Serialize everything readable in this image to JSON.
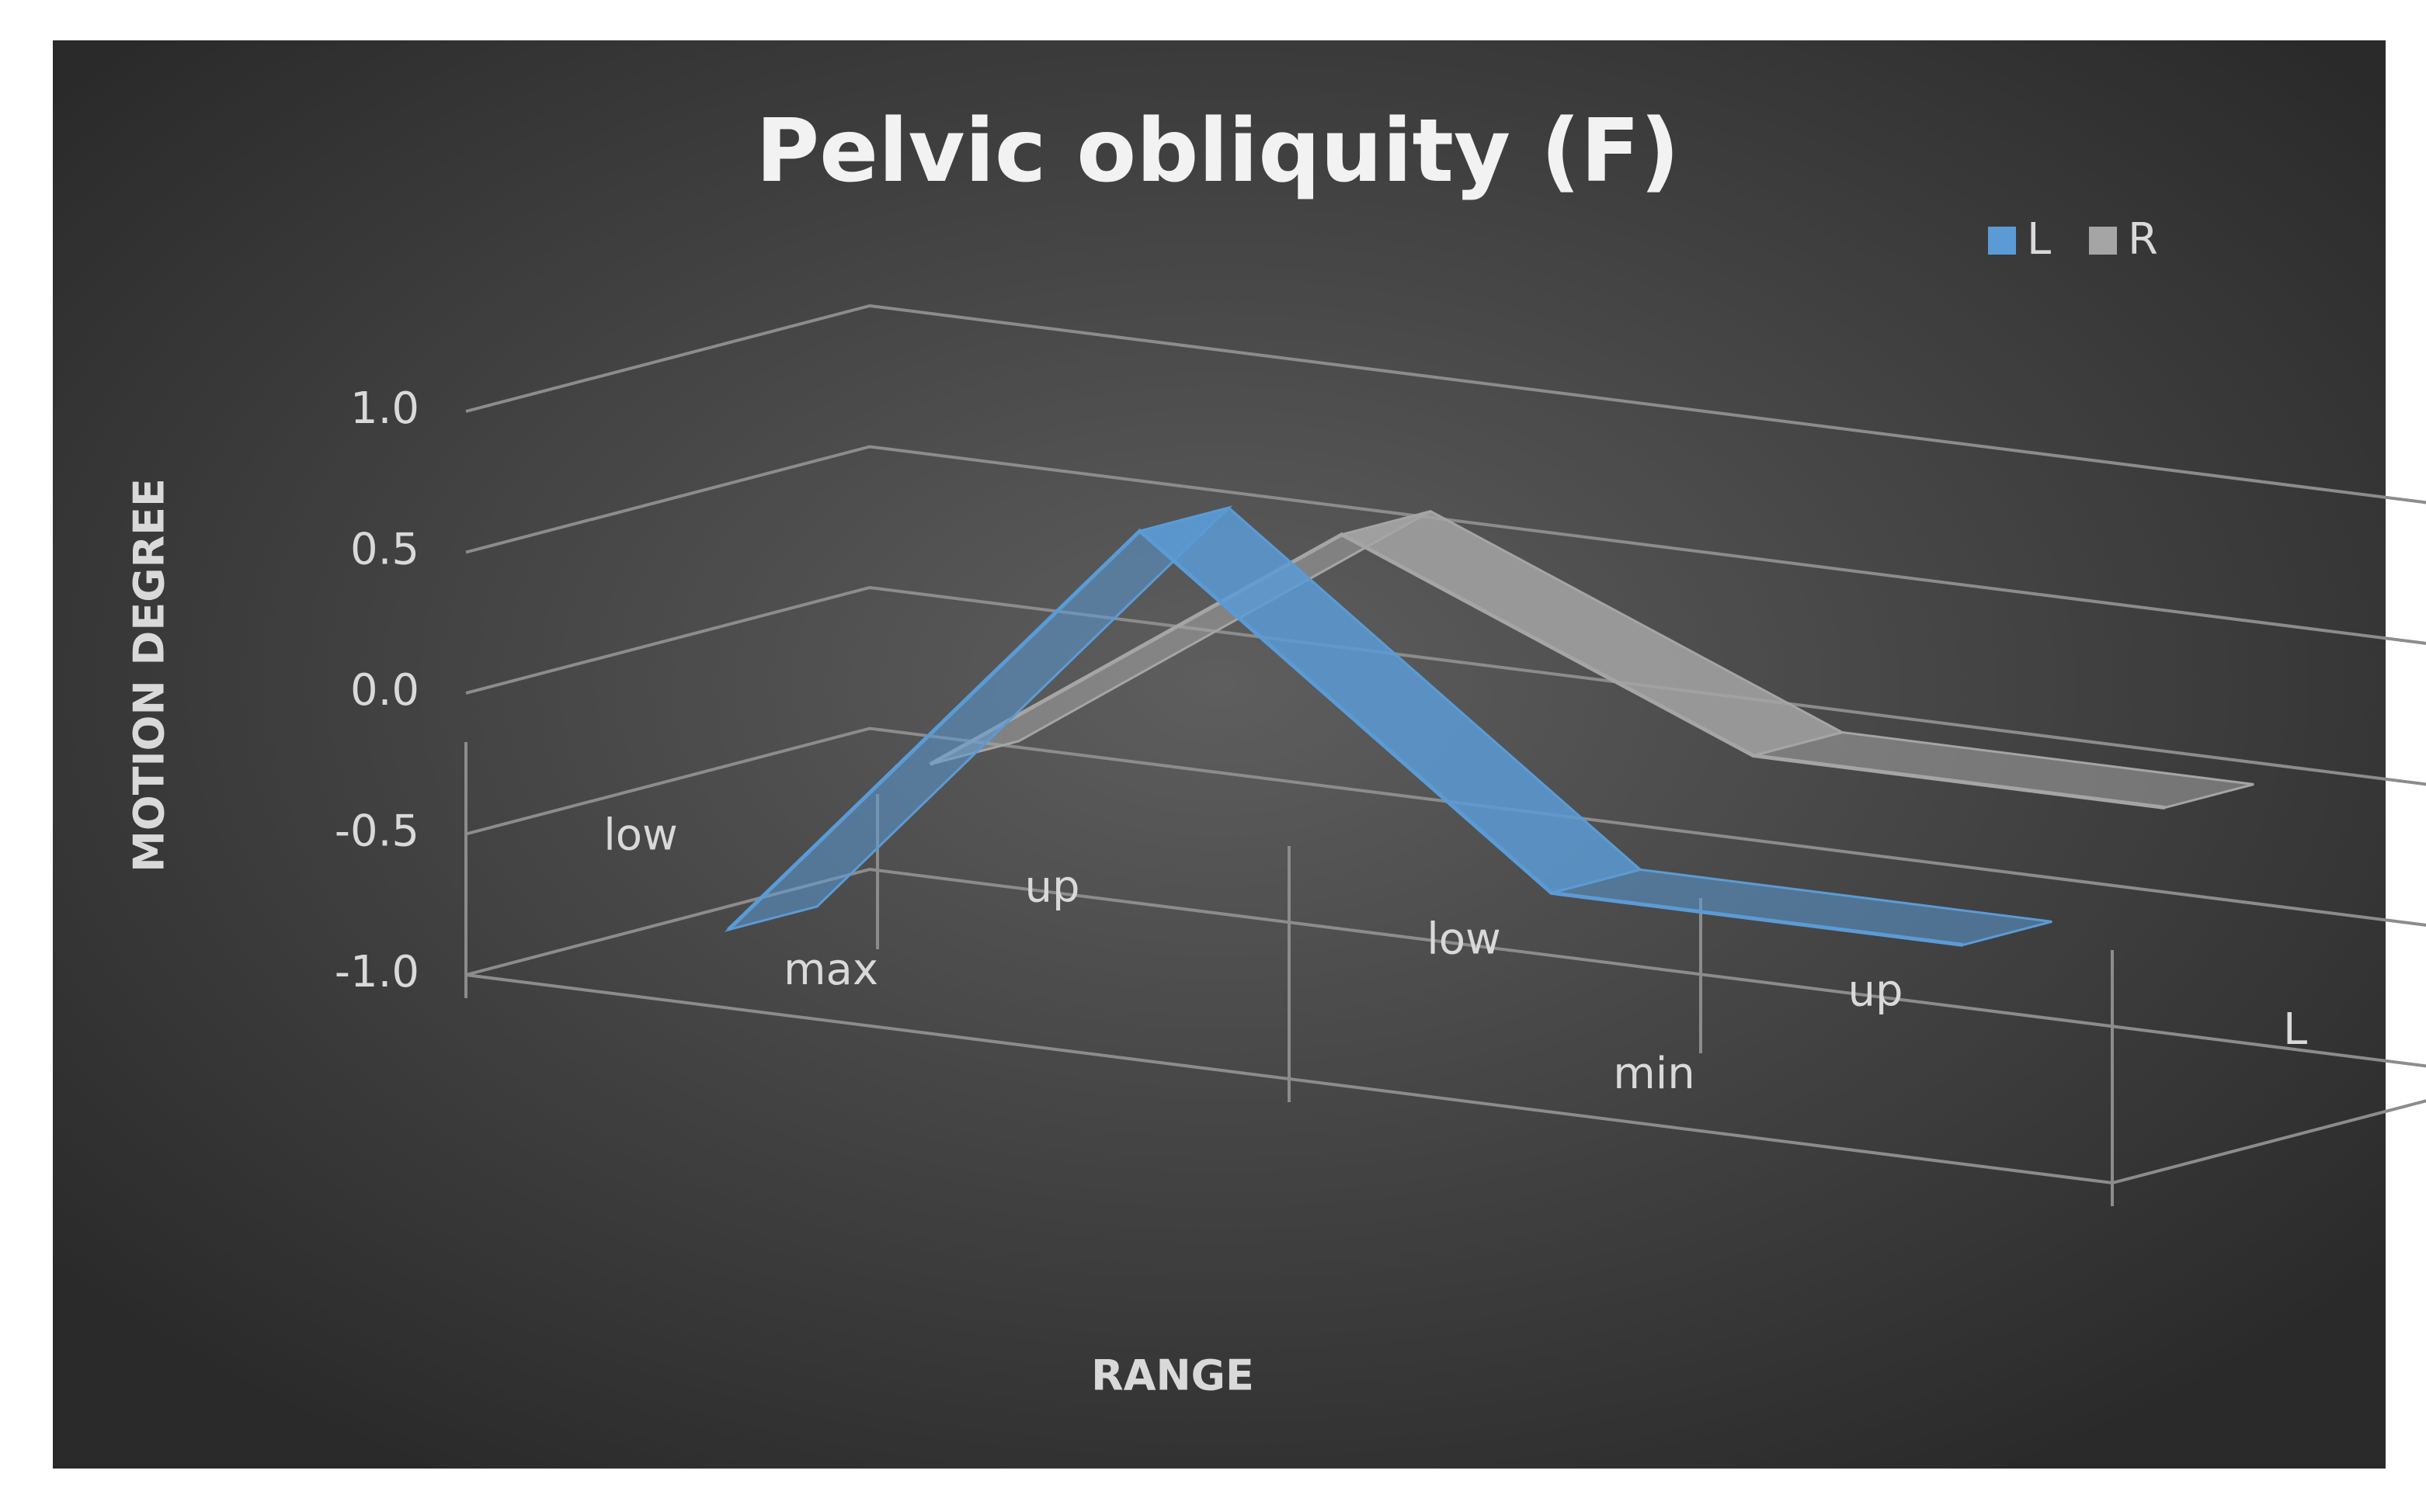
{
  "chart_data": {
    "type": "line3d",
    "title": "Pelvic obliquity (F)",
    "x_label": "RANGE",
    "y_label": "MOTION DEGREE",
    "categories": [
      "low",
      "up",
      "low",
      "up"
    ],
    "category_groups": [
      "max",
      "min"
    ],
    "series": [
      {
        "name": "L",
        "color": "#5b9bd5",
        "values": [
          -0.8,
          0.8,
          -0.3,
          -0.3
        ]
      },
      {
        "name": "R",
        "color": "#a5a5a5",
        "values": [
          -0.4,
          0.6,
          0.0,
          0.0
        ]
      }
    ],
    "ylim": [
      -1.0,
      1.0
    ],
    "yticks": [
      {
        "value": -1,
        "label": "-1.0"
      },
      {
        "value": -0.5,
        "label": "-0.5"
      },
      {
        "value": 0,
        "label": "0.0"
      },
      {
        "value": 0.5,
        "label": "0.5"
      },
      {
        "value": 1,
        "label": "1.0"
      }
    ],
    "grid": true,
    "legend": "top-right"
  }
}
